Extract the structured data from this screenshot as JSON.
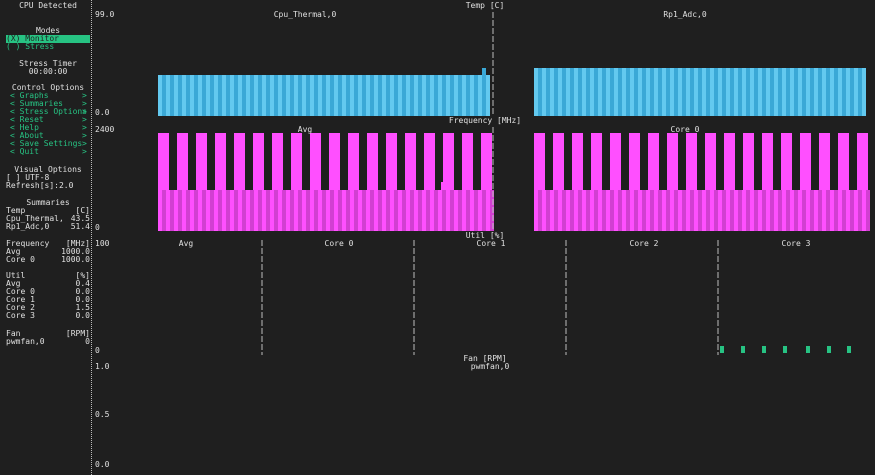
{
  "sidebar": {
    "header": "CPU Detected",
    "modes_title": "Modes",
    "monitor_label": "(X) Monitor",
    "stress_label": "( ) Stress",
    "stress_timer_title": "Stress Timer",
    "stress_timer_value": "00:00:00",
    "control_title": "Control Options",
    "control_items": [
      {
        "label": "< Graphs",
        "arrow": ">"
      },
      {
        "label": "< Summaries",
        "arrow": ">"
      },
      {
        "label": "< Stress Options",
        "arrow": ">"
      },
      {
        "label": "< Reset",
        "arrow": ">"
      },
      {
        "label": "< Help",
        "arrow": ">"
      },
      {
        "label": "< About",
        "arrow": ">"
      },
      {
        "label": "< Save Settings",
        "arrow": ">"
      },
      {
        "label": "< Quit",
        "arrow": ">"
      }
    ],
    "visual_title": "Visual Options",
    "utf8_label": "[ ] UTF-8",
    "refresh_label": "Refresh[s]:2.0",
    "summaries_title": "Summaries",
    "temp": {
      "label": "Temp",
      "unit": "[C]",
      "rows": [
        {
          "name": "Cpu_Thermal,",
          "value": "43.5"
        },
        {
          "name": "Rp1_Adc,0",
          "value": "51.4"
        }
      ]
    },
    "freq": {
      "label": "Frequency",
      "unit": "[MHz]",
      "rows": [
        {
          "name": "Avg",
          "value": "1000.0"
        },
        {
          "name": "Core 0",
          "value": "1000.0"
        }
      ]
    },
    "util": {
      "label": "Util",
      "unit": "[%]",
      "rows": [
        {
          "name": "Avg",
          "value": "0.4"
        },
        {
          "name": "Core 0",
          "value": "0.0"
        },
        {
          "name": "Core 1",
          "value": "0.0"
        },
        {
          "name": "Core 2",
          "value": "1.5"
        },
        {
          "name": "Core 3",
          "value": "0.0"
        }
      ]
    },
    "fan": {
      "label": "Fan",
      "unit": "[RPM]",
      "rows": [
        {
          "name": "pwmfan,0",
          "value": "0"
        }
      ]
    }
  },
  "graphs": {
    "temp": {
      "title": "Temp [C]",
      "y_max": "99.0",
      "y_min": "0.0",
      "series": [
        "Cpu_Thermal,0",
        "Rp1_Adc,0"
      ],
      "color": "#63c9ef"
    },
    "freq": {
      "title": "Frequency [MHz]",
      "y_max": "2400",
      "y_min": "0",
      "series": [
        "Avg",
        "Core 0"
      ],
      "color": "#ff4fff"
    },
    "util": {
      "title": "Util [%]",
      "y_max": "100",
      "y_min": "0",
      "series": [
        "Avg",
        "Core 0",
        "Core 1",
        "Core 2",
        "Core 3"
      ],
      "color": "#27c383"
    },
    "fan": {
      "title": "Fan [RPM]",
      "y_max": "1.0",
      "y_mid": "0.5",
      "y_min": "0.0",
      "series": [
        "pwmfan,0"
      ]
    }
  }
}
